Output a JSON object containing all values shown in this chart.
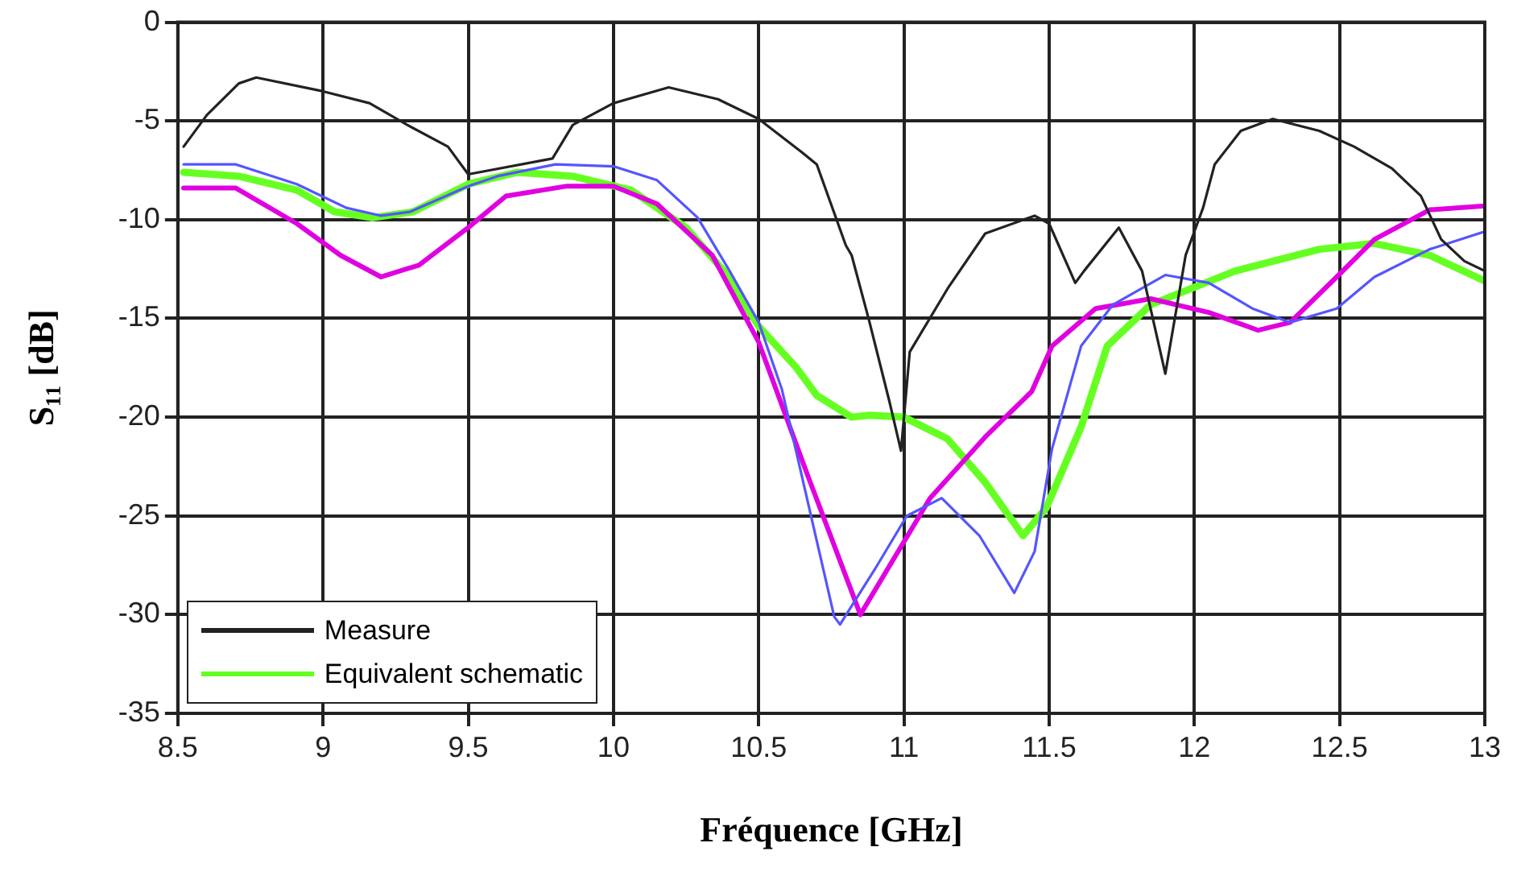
{
  "chart_data": {
    "type": "line",
    "xlabel": "Fréquence [GHz]",
    "ylabel": "S₁₁ [dB]",
    "xlim": [
      8.5,
      13
    ],
    "xticks": [
      8.5,
      9,
      9.5,
      10,
      10.5,
      11,
      11.5,
      12,
      12.5,
      13
    ],
    "ylim": [
      -35,
      0
    ],
    "yticks": [
      -35,
      -30,
      -25,
      -20,
      -15,
      -10,
      -5,
      0
    ],
    "grid": true,
    "legend": "bottom left",
    "marker": "none",
    "line_style": "solid",
    "series": [
      {
        "name": "Measure",
        "color": "#222222",
        "x": [
          8.52,
          8.6,
          8.71,
          8.77,
          9.0,
          9.16,
          9.29,
          9.43,
          9.5,
          9.79,
          9.86,
          10.0,
          10.19,
          10.36,
          10.5,
          10.65,
          10.7,
          10.8,
          10.82,
          10.88,
          10.95,
          10.99,
          11.02,
          11.15,
          11.28,
          11.45,
          11.5,
          11.59,
          11.62,
          11.74,
          11.82,
          11.9,
          11.97,
          12.03,
          12.07,
          12.16,
          12.27,
          12.43,
          12.55,
          12.68,
          12.78,
          12.85,
          12.93,
          13.0
        ],
        "values": [
          -6.3,
          -4.7,
          -3.1,
          -2.8,
          -3.5,
          -4.1,
          -5.2,
          -6.3,
          -7.7,
          -6.9,
          -5.2,
          -4.1,
          -3.3,
          -3.9,
          -4.9,
          -6.6,
          -7.2,
          -11.3,
          -11.8,
          -15.1,
          -19.2,
          -21.7,
          -16.7,
          -13.5,
          -10.7,
          -9.8,
          -10.2,
          -13.2,
          -12.6,
          -10.4,
          -12.6,
          -17.8,
          -11.8,
          -9.4,
          -7.2,
          -5.5,
          -4.9,
          -5.5,
          -6.3,
          -7.4,
          -8.8,
          -11,
          -12.1,
          -12.6
        ]
      },
      {
        "color": "#5555ff",
        "x": [
          8.52,
          8.7,
          8.91,
          9.08,
          9.2,
          9.3,
          9.5,
          9.6,
          9.8,
          10.0,
          10.15,
          10.29,
          10.4,
          10.5,
          10.58,
          10.76,
          10.78,
          10.9,
          11.01,
          11.13,
          11.26,
          11.38,
          11.45,
          11.51,
          11.61,
          11.72,
          11.9,
          12.05,
          12.2,
          12.33,
          12.49,
          12.62,
          12.81,
          13.0
        ],
        "values": [
          -7.2,
          -7.2,
          -8.2,
          -9.4,
          -9.8,
          -9.6,
          -8.3,
          -7.8,
          -7.2,
          -7.3,
          -8,
          -9.9,
          -12.6,
          -15.2,
          -18.6,
          -30.1,
          -30.5,
          -27.7,
          -25,
          -24.1,
          -26,
          -28.9,
          -26.8,
          -21.6,
          -16.4,
          -14.3,
          -12.8,
          -13.2,
          -14.5,
          -15.2,
          -14.5,
          -12.9,
          -11.5,
          -10.6
        ]
      },
      {
        "color": "#e000e0",
        "x": [
          8.52,
          8.7,
          8.91,
          9.06,
          9.2,
          9.33,
          9.5,
          9.63,
          9.84,
          10.0,
          10.15,
          10.34,
          10.5,
          10.67,
          10.85,
          11.09,
          11.28,
          11.44,
          11.51,
          11.66,
          11.85,
          12.05,
          12.22,
          12.33,
          12.49,
          12.62,
          12.81,
          13.0
        ],
        "values": [
          -8.4,
          -8.4,
          -10.2,
          -11.8,
          -12.9,
          -12.3,
          -10.4,
          -8.8,
          -8.3,
          -8.3,
          -9.2,
          -11.8,
          -16.2,
          -23,
          -30,
          -24.1,
          -21,
          -18.7,
          -16.4,
          -14.5,
          -14,
          -14.7,
          -15.6,
          -15.2,
          -12.9,
          -11,
          -9.5,
          -9.3
        ]
      },
      {
        "name": "Equivalent schematic",
        "color": "#66ff22",
        "x": [
          8.52,
          8.71,
          8.91,
          9.04,
          9.17,
          9.31,
          9.5,
          9.67,
          9.86,
          10.06,
          10.25,
          10.38,
          10.5,
          10.63,
          10.7,
          10.82,
          10.88,
          11.0,
          11.15,
          11.28,
          11.41,
          11.49,
          11.61,
          11.7,
          11.85,
          12.14,
          12.43,
          12.62,
          12.81,
          13.0
        ],
        "values": [
          -7.6,
          -7.8,
          -8.5,
          -9.6,
          -9.9,
          -9.6,
          -8.2,
          -7.6,
          -7.8,
          -8.5,
          -10.4,
          -12.6,
          -15.4,
          -17.5,
          -18.9,
          -20,
          -19.9,
          -20,
          -21.1,
          -23.3,
          -26,
          -24.6,
          -20.5,
          -16.4,
          -14.3,
          -12.6,
          -11.5,
          -11.2,
          -11.8,
          -13.1
        ]
      }
    ]
  }
}
